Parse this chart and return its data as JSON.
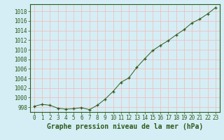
{
  "x": [
    0,
    1,
    2,
    3,
    4,
    5,
    6,
    7,
    8,
    9,
    10,
    11,
    12,
    13,
    14,
    15,
    16,
    17,
    18,
    19,
    20,
    21,
    22,
    23
  ],
  "y": [
    998.2,
    998.6,
    998.4,
    997.8,
    997.6,
    997.7,
    997.9,
    997.5,
    998.4,
    999.7,
    1001.3,
    1003.2,
    1004.1,
    1006.3,
    1008.1,
    1009.8,
    1010.9,
    1011.9,
    1013.1,
    1014.2,
    1015.6,
    1016.4,
    1017.5,
    1018.8
  ],
  "ylim": [
    997.0,
    1019.5
  ],
  "yticks": [
    998,
    1000,
    1002,
    1004,
    1006,
    1008,
    1010,
    1012,
    1014,
    1016,
    1018
  ],
  "xticks": [
    0,
    1,
    2,
    3,
    4,
    5,
    6,
    7,
    8,
    9,
    10,
    11,
    12,
    13,
    14,
    15,
    16,
    17,
    18,
    19,
    20,
    21,
    22,
    23
  ],
  "xlabel": "Graphe pression niveau de la mer (hPa)",
  "line_color": "#2d5a1b",
  "marker": "+",
  "bg_color": "#d5eef5",
  "grid_color": "#f0c0c0",
  "tick_label_color": "#2d5a1b",
  "xlabel_color": "#2d5a1b",
  "xlabel_fontsize": 7,
  "tick_fontsize": 5.5
}
